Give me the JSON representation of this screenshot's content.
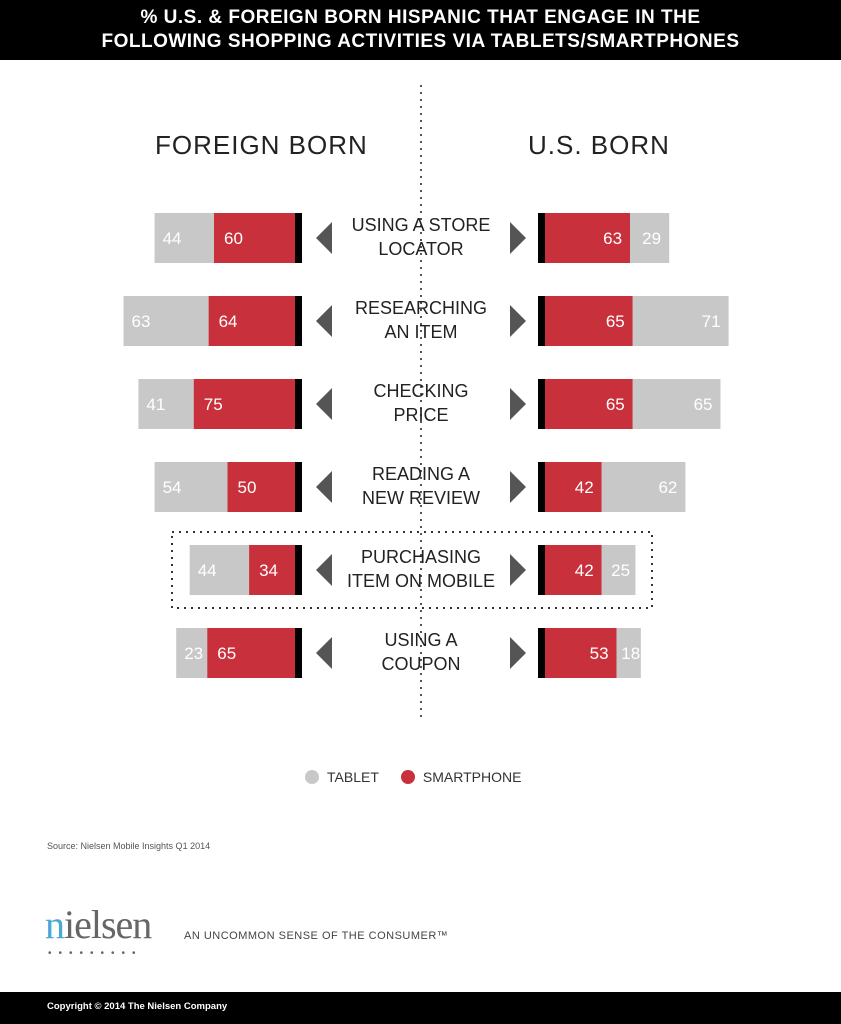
{
  "title": "% U.S. & FOREIGN BORN HISPANIC THAT ENGAGE IN THE FOLLOWING SHOPPING ACTIVITIES VIA TABLETS/SMARTPHONES",
  "title_lines": [
    "% U.S. & FOREIGN BORN HISPANIC THAT ENGAGE IN THE",
    "FOLLOWING SHOPPING ACTIVITIES VIA TABLETS/SMARTPHONES"
  ],
  "chart_data": {
    "type": "bar",
    "orientation": "horizontal-butterfly-stacked",
    "groups": [
      "FOREIGN BORN",
      "U.S. BORN"
    ],
    "categories": [
      [
        "USING A STORE",
        "LOCATOR"
      ],
      [
        "RESEARCHING",
        "AN ITEM"
      ],
      [
        "CHECKING",
        "PRICE"
      ],
      [
        "READING A",
        "NEW REVIEW"
      ],
      [
        "PURCHASING",
        "ITEM ON MOBILE"
      ],
      [
        "USING A",
        "COUPON"
      ]
    ],
    "highlighted_category_index": 4,
    "series": [
      {
        "name": "TABLET",
        "color": "#c8c8c8",
        "foreign_born": [
          44,
          63,
          41,
          54,
          44,
          23
        ],
        "us_born": [
          29,
          71,
          65,
          62,
          25,
          18
        ]
      },
      {
        "name": "SMARTPHONE",
        "color": "#c8303c",
        "foreign_born": [
          60,
          64,
          75,
          50,
          34,
          65
        ],
        "us_born": [
          63,
          65,
          65,
          42,
          42,
          53
        ]
      }
    ],
    "legend_placement": "bottom-center"
  },
  "source": "Source: Nielsen Mobile Insights Q1 2014",
  "logo": "nielsen",
  "tagline": "AN UNCOMMON SENSE OF THE CONSUMER™",
  "copyright": "Copyright © 2014 The Nielsen Company"
}
